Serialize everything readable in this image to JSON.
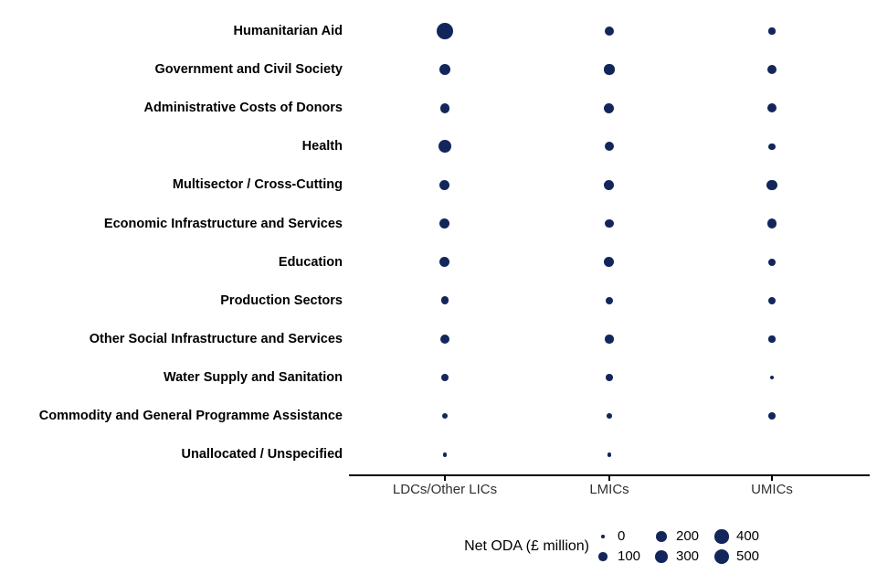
{
  "chart_data": {
    "type": "bubble",
    "title": "",
    "rows": [
      "Humanitarian Aid",
      "Government and Civil Society",
      "Administrative Costs of Donors",
      "Health",
      "Multisector / Cross-Cutting",
      "Economic Infrastructure and Services",
      "Education",
      "Production Sectors",
      "Other Social Infrastructure and Services",
      "Water Supply and Sanitation",
      "Commodity and General Programme Assistance",
      "Unallocated / Unspecified"
    ],
    "columns": [
      "LDCs/Other LICs",
      "LMICs",
      "UMICs"
    ],
    "values": [
      [
        650,
        150,
        40
      ],
      [
        210,
        180,
        125
      ],
      [
        150,
        165,
        135
      ],
      [
        320,
        125,
        45
      ],
      [
        165,
        165,
        195
      ],
      [
        165,
        115,
        135
      ],
      [
        165,
        165,
        70
      ],
      [
        90,
        80,
        80
      ],
      [
        125,
        100,
        40
      ],
      [
        80,
        55,
        5
      ],
      [
        30,
        15,
        55
      ],
      [
        5,
        5,
        null
      ]
    ],
    "legend": {
      "title": "Net ODA (£ million)",
      "sizes": [
        0,
        100,
        200,
        300,
        400,
        500
      ]
    },
    "dot_color": "#13265C",
    "axis_color": "#000000",
    "grid": false,
    "legend_position": "bottom"
  }
}
